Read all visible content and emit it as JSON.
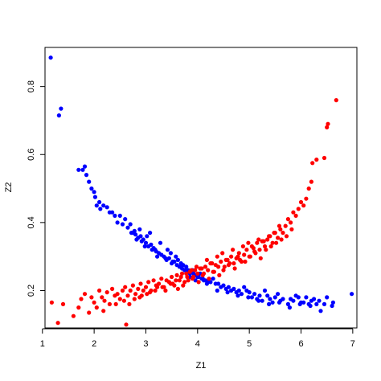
{
  "chart_data": {
    "type": "scatter",
    "title": "",
    "xlabel": "Z1",
    "ylabel": "Z2",
    "xlim": [
      1.05,
      7.08
    ],
    "ylim": [
      0.09,
      0.915
    ],
    "xticks": [
      1,
      2,
      3,
      4,
      5,
      6,
      7
    ],
    "yticks": [
      0.2,
      0.4,
      0.6,
      0.8
    ],
    "grid": false,
    "legend": "none",
    "series": [
      {
        "color": "#0000FF",
        "x": [
          1.16,
          1.32,
          1.36,
          1.7,
          1.78,
          1.82,
          1.85,
          1.9,
          1.95,
          2.0,
          2.02,
          2.05,
          2.1,
          2.12,
          2.18,
          2.25,
          2.3,
          2.4,
          2.5,
          2.55,
          2.65,
          2.7,
          2.72,
          2.78,
          2.8,
          2.85,
          2.9,
          2.92,
          2.95,
          3.0,
          3.05,
          3.1,
          3.15,
          3.18,
          3.2,
          3.22,
          3.25,
          3.3,
          3.35,
          3.4,
          3.45,
          3.5,
          3.55,
          3.6,
          3.65,
          3.7,
          3.75,
          3.8,
          3.85,
          3.9,
          3.95,
          4.0,
          4.05,
          4.1,
          4.15,
          4.2,
          4.3,
          4.4,
          4.5,
          4.6,
          4.7,
          4.8,
          4.9,
          5.0,
          5.1,
          5.2,
          5.3,
          5.4,
          5.5,
          5.6,
          5.8,
          5.9,
          6.0,
          6.1,
          6.2,
          6.3,
          6.5,
          6.6,
          6.62,
          6.98,
          2.6,
          2.88,
          3.02,
          3.08,
          3.28,
          3.42,
          3.48,
          3.58,
          3.62,
          3.68,
          3.72,
          3.78,
          3.82,
          3.88,
          3.92,
          3.98,
          4.02,
          4.08,
          4.12,
          4.25,
          4.35,
          4.45,
          4.55,
          4.65,
          4.75,
          4.85,
          4.95,
          5.05,
          5.15,
          5.25,
          5.35,
          5.45,
          5.55,
          5.65,
          5.75,
          5.85,
          5.95,
          6.05,
          6.15,
          6.25,
          6.35,
          6.45,
          2.35,
          2.45,
          2.75,
          2.82,
          2.98,
          3.12,
          3.38,
          3.52,
          3.66,
          3.76,
          3.86,
          3.96,
          4.18,
          4.38,
          4.58,
          4.78,
          4.98,
          5.18,
          5.38,
          5.58,
          5.78,
          5.98,
          6.18,
          6.38
        ],
        "y": [
          0.885,
          0.715,
          0.735,
          0.555,
          0.555,
          0.565,
          0.54,
          0.52,
          0.5,
          0.49,
          0.475,
          0.45,
          0.46,
          0.44,
          0.45,
          0.445,
          0.43,
          0.42,
          0.42,
          0.395,
          0.385,
          0.395,
          0.37,
          0.375,
          0.365,
          0.355,
          0.36,
          0.345,
          0.35,
          0.34,
          0.33,
          0.335,
          0.325,
          0.32,
          0.315,
          0.3,
          0.31,
          0.305,
          0.3,
          0.29,
          0.295,
          0.28,
          0.285,
          0.275,
          0.27,
          0.265,
          0.26,
          0.255,
          0.25,
          0.26,
          0.245,
          0.24,
          0.25,
          0.235,
          0.23,
          0.225,
          0.235,
          0.22,
          0.215,
          0.21,
          0.205,
          0.2,
          0.21,
          0.195,
          0.19,
          0.185,
          0.2,
          0.175,
          0.18,
          0.17,
          0.175,
          0.185,
          0.165,
          0.18,
          0.17,
          0.16,
          0.18,
          0.155,
          0.165,
          0.19,
          0.41,
          0.38,
          0.36,
          0.37,
          0.34,
          0.32,
          0.31,
          0.3,
          0.29,
          0.28,
          0.275,
          0.27,
          0.26,
          0.255,
          0.25,
          0.245,
          0.24,
          0.235,
          0.23,
          0.225,
          0.22,
          0.21,
          0.205,
          0.2,
          0.195,
          0.19,
          0.2,
          0.18,
          0.175,
          0.17,
          0.185,
          0.165,
          0.19,
          0.175,
          0.16,
          0.17,
          0.18,
          0.165,
          0.16,
          0.175,
          0.17,
          0.16,
          0.43,
          0.4,
          0.37,
          0.35,
          0.33,
          0.32,
          0.295,
          0.285,
          0.27,
          0.26,
          0.24,
          0.23,
          0.22,
          0.2,
          0.195,
          0.185,
          0.18,
          0.17,
          0.16,
          0.165,
          0.15,
          0.16,
          0.155,
          0.14
        ]
      },
      {
        "color": "#FF0000",
        "x": [
          1.18,
          1.3,
          1.4,
          1.6,
          1.7,
          1.75,
          1.82,
          1.9,
          1.95,
          2.0,
          2.05,
          2.1,
          2.15,
          2.2,
          2.25,
          2.3,
          2.35,
          2.4,
          2.45,
          2.5,
          2.55,
          2.6,
          2.62,
          2.65,
          2.7,
          2.75,
          2.8,
          2.85,
          2.9,
          2.95,
          3.0,
          3.05,
          3.1,
          3.15,
          3.2,
          3.25,
          3.3,
          3.35,
          3.4,
          3.45,
          3.5,
          3.55,
          3.6,
          3.65,
          3.7,
          3.75,
          3.8,
          3.85,
          3.9,
          3.95,
          4.0,
          4.05,
          4.1,
          4.15,
          4.2,
          4.25,
          4.3,
          4.35,
          4.4,
          4.45,
          4.5,
          4.55,
          4.6,
          4.65,
          4.7,
          4.75,
          4.8,
          4.85,
          4.9,
          4.95,
          5.0,
          5.05,
          5.1,
          5.15,
          5.2,
          5.25,
          5.3,
          5.35,
          5.4,
          5.45,
          5.5,
          5.55,
          5.6,
          5.65,
          5.7,
          5.75,
          5.8,
          5.85,
          5.9,
          5.95,
          6.0,
          6.05,
          6.1,
          6.15,
          6.2,
          6.22,
          6.3,
          6.45,
          6.5,
          6.52,
          6.68,
          2.68,
          2.78,
          2.92,
          3.08,
          3.22,
          3.38,
          3.52,
          3.62,
          3.72,
          3.82,
          3.92,
          4.02,
          4.12,
          4.22,
          4.32,
          4.42,
          4.52,
          4.62,
          4.72,
          4.82,
          4.92,
          5.02,
          5.12,
          5.22,
          5.32,
          5.42,
          5.52,
          5.62,
          5.72,
          5.82,
          2.18,
          2.42,
          2.58,
          2.88,
          3.02,
          3.18,
          3.32,
          3.48,
          3.58,
          3.68,
          3.78,
          3.88,
          3.98,
          4.08,
          4.18,
          4.28,
          4.38,
          4.48,
          4.58,
          4.68,
          4.78,
          4.88,
          4.98,
          5.08,
          5.18,
          5.28,
          5.38,
          5.48,
          5.58
        ],
        "y": [
          0.165,
          0.105,
          0.16,
          0.125,
          0.15,
          0.175,
          0.19,
          0.135,
          0.18,
          0.165,
          0.15,
          0.2,
          0.18,
          0.17,
          0.195,
          0.16,
          0.205,
          0.185,
          0.19,
          0.175,
          0.2,
          0.21,
          0.1,
          0.185,
          0.2,
          0.215,
          0.19,
          0.205,
          0.22,
          0.2,
          0.21,
          0.225,
          0.2,
          0.23,
          0.215,
          0.22,
          0.235,
          0.21,
          0.23,
          0.225,
          0.24,
          0.215,
          0.245,
          0.23,
          0.25,
          0.225,
          0.24,
          0.255,
          0.235,
          0.26,
          0.25,
          0.265,
          0.245,
          0.27,
          0.26,
          0.28,
          0.255,
          0.275,
          0.27,
          0.285,
          0.26,
          0.29,
          0.275,
          0.3,
          0.28,
          0.295,
          0.31,
          0.285,
          0.305,
          0.32,
          0.3,
          0.33,
          0.315,
          0.34,
          0.32,
          0.345,
          0.33,
          0.35,
          0.36,
          0.34,
          0.37,
          0.355,
          0.38,
          0.37,
          0.39,
          0.41,
          0.4,
          0.43,
          0.42,
          0.44,
          0.46,
          0.45,
          0.47,
          0.5,
          0.52,
          0.575,
          0.585,
          0.59,
          0.68,
          0.69,
          0.76,
          0.16,
          0.175,
          0.185,
          0.195,
          0.21,
          0.2,
          0.22,
          0.205,
          0.215,
          0.23,
          0.24,
          0.225,
          0.25,
          0.235,
          0.255,
          0.245,
          0.27,
          0.28,
          0.265,
          0.29,
          0.285,
          0.3,
          0.31,
          0.295,
          0.32,
          0.33,
          0.34,
          0.35,
          0.36,
          0.38,
          0.14,
          0.16,
          0.17,
          0.18,
          0.19,
          0.2,
          0.21,
          0.22,
          0.23,
          0.24,
          0.25,
          0.26,
          0.27,
          0.265,
          0.29,
          0.28,
          0.3,
          0.31,
          0.29,
          0.32,
          0.3,
          0.33,
          0.34,
          0.325,
          0.35,
          0.345,
          0.36,
          0.37,
          0.39
        ]
      }
    ]
  }
}
